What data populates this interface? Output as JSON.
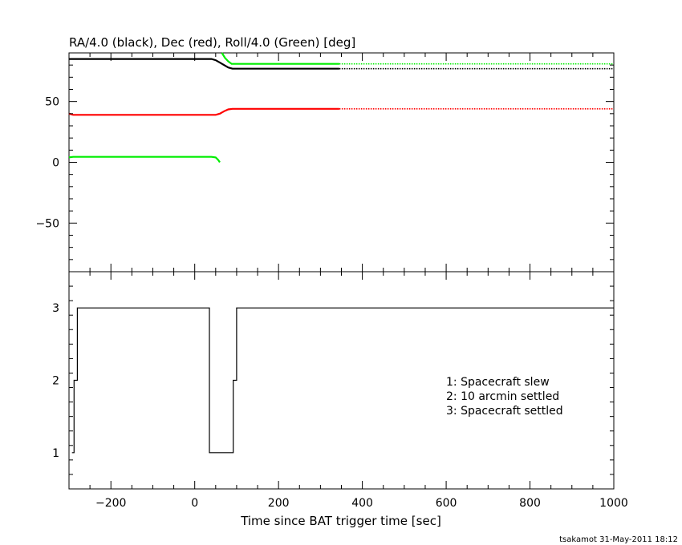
{
  "chart_data": [
    {
      "type": "line",
      "title": "RA/4.0 (black), Dec (red), Roll/4.0 (Green) [deg]",
      "xlim": [
        -300,
        1000
      ],
      "ylim": [
        -90,
        90
      ],
      "xticks": [
        -200,
        0,
        200,
        400,
        600,
        800,
        1000
      ],
      "yticks": [
        -50,
        0,
        50
      ],
      "series": [
        {
          "color": "#000000",
          "x": [
            -300,
            40,
            50,
            60,
            70,
            80,
            90,
            345
          ],
          "y": [
            85,
            85,
            84,
            82,
            80,
            78,
            77,
            77
          ],
          "dotted_after": 345,
          "dotted_to": 1000
        },
        {
          "color": "#ff0000",
          "x": [
            -300,
            -290,
            50,
            60,
            70,
            80,
            90,
            345
          ],
          "y": [
            40,
            39,
            39,
            40,
            42,
            43.5,
            44,
            44
          ],
          "dotted_after": 345,
          "dotted_to": 1000
        },
        {
          "color": "#00ee00",
          "x": [
            -300,
            -290,
            40,
            50,
            56,
            60
          ],
          "y": [
            4,
            4.5,
            4.5,
            4,
            2,
            0
          ],
          "dotted_after": null
        },
        {
          "color": "#00ee00",
          "x": [
            65,
            72,
            80,
            88,
            345
          ],
          "y": [
            90,
            86,
            83,
            81,
            81
          ],
          "dotted_after": 345,
          "dotted_to": 1000
        }
      ]
    },
    {
      "type": "line",
      "step": true,
      "xlabel": "Time since BAT trigger time [sec]",
      "xlim": [
        -300,
        1000
      ],
      "ylim": [
        0.5,
        3.5
      ],
      "xticks": [
        -200,
        0,
        200,
        400,
        600,
        800,
        1000
      ],
      "yticks": [
        1,
        2,
        3
      ],
      "series": [
        {
          "color": "#000000",
          "x": [
            -293,
            -288,
            -280,
            35,
            92,
            100,
            1000
          ],
          "y": [
            1,
            2,
            3,
            1,
            2,
            3,
            3
          ]
        }
      ],
      "legend": [
        "1: Spacecraft slew",
        "2: 10 arcmin settled",
        "3: Spacecraft settled"
      ]
    }
  ],
  "footer": {
    "credit": "tsakamot 31-May-2011 18:12"
  }
}
